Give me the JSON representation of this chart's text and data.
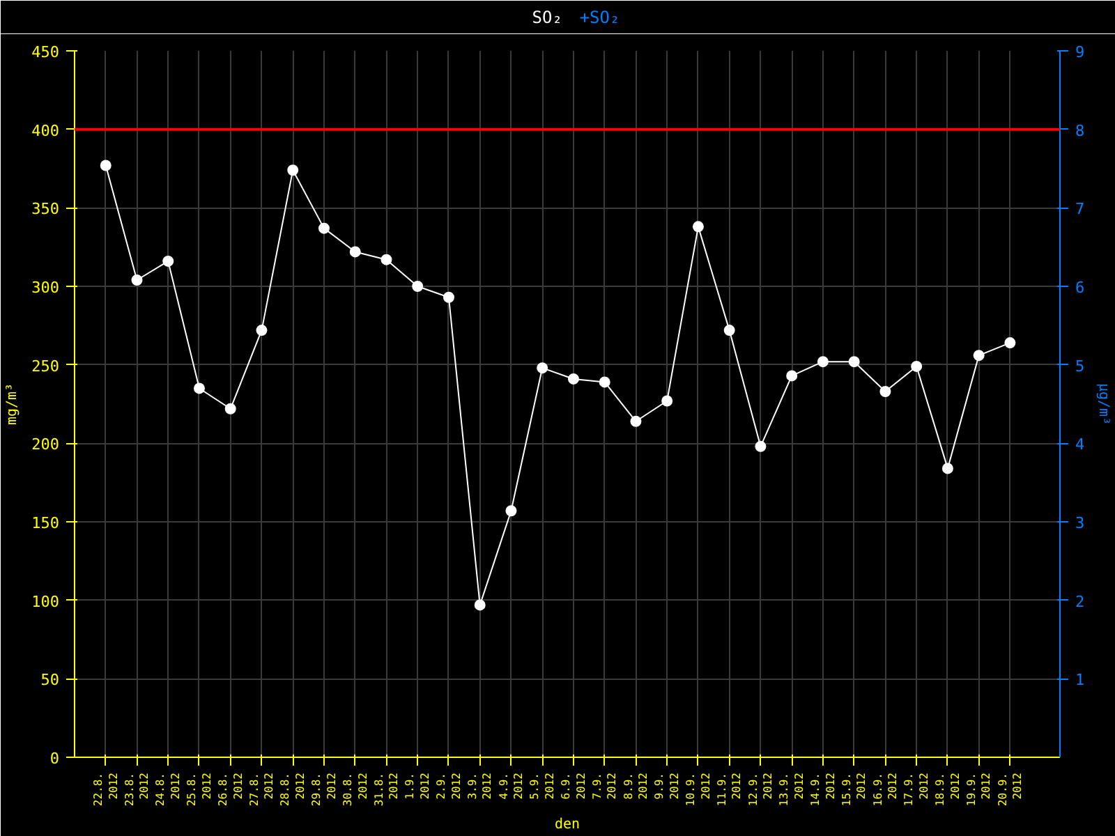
{
  "chart_data": {
    "type": "line",
    "title": "SO₂",
    "annotations": [
      "+SO₂"
    ],
    "ylabel": "mg/m³",
    "y2label": "µg/m³",
    "xlabel": "den",
    "categories": [
      "22.8.\n2012",
      "23.8.\n2012",
      "24.8.\n2012",
      "25.8.\n2012",
      "26.8.\n2012",
      "27.8.\n2012",
      "28.8.\n2012",
      "29.8.\n2012",
      "30.8.\n2012",
      "31.8.\n2012",
      "1.9.\n2012",
      "2.9.\n2012",
      "3.9.\n2012",
      "4.9.\n2012",
      "5.9.\n2012",
      "6.9.\n2012",
      "7.9.\n2012",
      "8.9.\n2012",
      "9.9.\n2012",
      "10.9.\n2012",
      "11.9.\n2012",
      "12.9.\n2012",
      "13.9.\n2012",
      "14.9.\n2012",
      "15.9.\n2012",
      "16.9.\n2012",
      "17.9.\n2012",
      "18.9.\n2012",
      "19.9.\n2012",
      "20.9.\n2012"
    ],
    "series": [
      {
        "color": "#ffffff",
        "values": [
          377,
          304,
          316,
          235,
          222,
          272,
          374,
          337,
          322,
          317,
          300,
          293,
          97,
          157,
          248,
          241,
          239,
          214,
          227,
          338,
          272,
          198,
          243,
          252,
          252,
          233,
          249,
          184,
          256,
          264
        ]
      }
    ],
    "ylim": [
      0,
      450
    ],
    "yticks": [
      0,
      50,
      100,
      150,
      200,
      250,
      300,
      350,
      400,
      450
    ],
    "y2lim": [
      0,
      9
    ],
    "y2ticks": [
      1,
      2,
      3,
      4,
      5,
      6,
      7,
      8,
      9
    ],
    "ref_lines": [
      {
        "axis": "y",
        "value": 400,
        "label": null,
        "color": "#ff0000"
      }
    ],
    "grid": true,
    "marker": "circle",
    "line_style": "solid"
  }
}
